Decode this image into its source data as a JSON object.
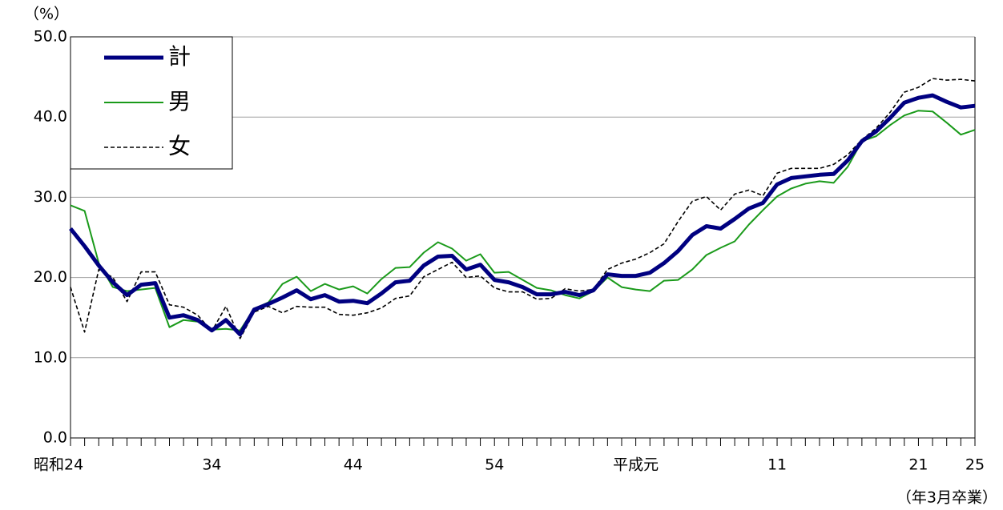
{
  "chart_data": {
    "type": "line",
    "y_unit_label": "（%）",
    "x_unit_label": "（年3月卒業）",
    "categories": [
      "昭和24",
      null,
      null,
      null,
      null,
      null,
      null,
      null,
      null,
      null,
      "34",
      null,
      null,
      null,
      null,
      null,
      null,
      null,
      null,
      null,
      "44",
      null,
      null,
      null,
      null,
      null,
      null,
      null,
      null,
      null,
      "54",
      null,
      null,
      null,
      null,
      null,
      null,
      null,
      null,
      null,
      "平成元",
      null,
      null,
      null,
      null,
      null,
      null,
      null,
      null,
      null,
      "11",
      null,
      null,
      null,
      null,
      null,
      null,
      null,
      null,
      null,
      "21",
      null,
      null,
      null,
      "25"
    ],
    "series": [
      {
        "name": "計",
        "color": "#000080",
        "values": [
          26.1,
          23.9,
          21.5,
          19.4,
          17.8,
          19.1,
          19.3,
          15.0,
          15.3,
          14.7,
          13.4,
          14.7,
          12.9,
          16.0,
          16.7,
          17.5,
          18.4,
          17.3,
          17.8,
          17.0,
          17.1,
          16.8,
          18.0,
          19.4,
          19.6,
          21.5,
          22.6,
          22.7,
          21.0,
          21.6,
          19.7,
          19.4,
          18.8,
          17.9,
          17.9,
          18.2,
          17.8,
          18.4,
          20.4,
          20.2,
          20.2,
          20.6,
          21.8,
          23.3,
          25.3,
          26.4,
          26.1,
          27.3,
          28.6,
          29.3,
          31.6,
          32.4,
          32.6,
          32.8,
          32.9,
          34.6,
          37.0,
          38.2,
          39.9,
          41.8,
          42.4,
          42.7,
          41.9,
          41.2,
          41.4
        ]
      },
      {
        "name": "男",
        "color": "#1a9a1a",
        "values": [
          29.0,
          28.3,
          21.8,
          18.8,
          18.3,
          18.5,
          18.7,
          13.8,
          14.7,
          14.5,
          13.5,
          13.6,
          13.4,
          16.1,
          16.9,
          19.2,
          20.1,
          18.3,
          19.2,
          18.5,
          18.9,
          18.0,
          19.8,
          21.2,
          21.3,
          23.1,
          24.4,
          23.6,
          22.1,
          22.9,
          20.6,
          20.7,
          19.7,
          18.7,
          18.4,
          17.8,
          17.4,
          18.3,
          20.0,
          18.8,
          18.5,
          18.3,
          19.6,
          19.7,
          21.0,
          22.8,
          23.7,
          24.5,
          26.6,
          28.4,
          30.1,
          31.1,
          31.7,
          32.0,
          31.8,
          33.8,
          37.0,
          37.6,
          39.0,
          40.2,
          40.8,
          40.7,
          39.3,
          37.8,
          38.4
        ]
      },
      {
        "name": "女",
        "color": "#000000",
        "values": [
          18.8,
          13.2,
          21.0,
          20.0,
          17.0,
          20.7,
          20.7,
          16.6,
          16.3,
          15.3,
          13.3,
          16.4,
          12.4,
          15.7,
          16.4,
          15.6,
          16.4,
          16.3,
          16.3,
          15.4,
          15.3,
          15.6,
          16.2,
          17.4,
          17.7,
          20.1,
          21.0,
          21.9,
          20.0,
          20.2,
          18.7,
          18.2,
          18.2,
          17.3,
          17.4,
          18.6,
          18.3,
          18.5,
          21.0,
          21.8,
          22.3,
          23.1,
          24.2,
          27.0,
          29.5,
          30.1,
          28.4,
          30.4,
          30.9,
          30.2,
          33.0,
          33.6,
          33.6,
          33.6,
          34.1,
          35.3,
          37.2,
          38.6,
          40.6,
          43.1,
          43.7,
          44.8,
          44.6,
          44.7,
          44.5
        ]
      }
    ],
    "ylim": [
      0,
      50
    ],
    "yticks": [
      {
        "value": 0,
        "label": "0.0"
      },
      {
        "value": 10,
        "label": "10.0"
      },
      {
        "value": 20,
        "label": "20.0"
      },
      {
        "value": 30,
        "label": "30.0"
      },
      {
        "value": 40,
        "label": "40.0"
      },
      {
        "value": 50,
        "label": "50.0"
      }
    ],
    "grid": true,
    "legend": "top-left"
  }
}
